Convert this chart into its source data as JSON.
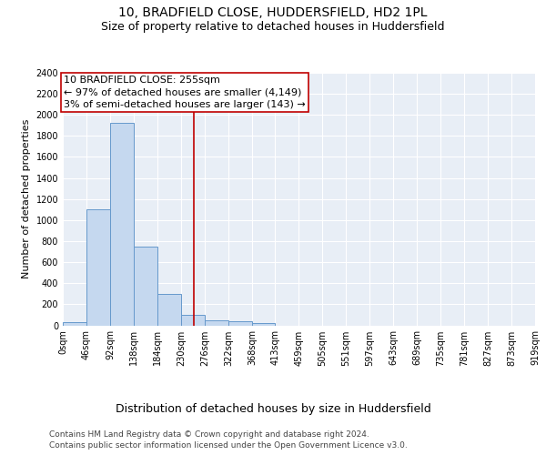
{
  "title1": "10, BRADFIELD CLOSE, HUDDERSFIELD, HD2 1PL",
  "title2": "Size of property relative to detached houses in Huddersfield",
  "xlabel": "Distribution of detached houses by size in Huddersfield",
  "ylabel": "Number of detached properties",
  "bar_edges": [
    0,
    46,
    92,
    138,
    184,
    230,
    276,
    322,
    368,
    413,
    459,
    505,
    551,
    597,
    643,
    689,
    735,
    781,
    827,
    873,
    919
  ],
  "bar_heights": [
    30,
    1100,
    1920,
    750,
    300,
    100,
    50,
    40,
    20,
    0,
    0,
    0,
    0,
    0,
    0,
    0,
    0,
    0,
    0,
    0
  ],
  "bar_color": "#c5d8ef",
  "bar_edgecolor": "#6699cc",
  "property_line_x": 255,
  "property_line_color": "#c00000",
  "annotation_line1": "10 BRADFIELD CLOSE: 255sqm",
  "annotation_line2": "← 97% of detached houses are smaller (4,149)",
  "annotation_line3": "3% of semi-detached houses are larger (143) →",
  "annotation_box_color": "#c00000",
  "ylim": [
    0,
    2400
  ],
  "yticks": [
    0,
    200,
    400,
    600,
    800,
    1000,
    1200,
    1400,
    1600,
    1800,
    2000,
    2200,
    2400
  ],
  "background_color": "#e8eef6",
  "tick_labels": [
    "0sqm",
    "46sqm",
    "92sqm",
    "138sqm",
    "184sqm",
    "230sqm",
    "276sqm",
    "322sqm",
    "368sqm",
    "413sqm",
    "459sqm",
    "505sqm",
    "551sqm",
    "597sqm",
    "643sqm",
    "689sqm",
    "735sqm",
    "781sqm",
    "827sqm",
    "873sqm",
    "919sqm"
  ],
  "footer1": "Contains HM Land Registry data © Crown copyright and database right 2024.",
  "footer2": "Contains public sector information licensed under the Open Government Licence v3.0.",
  "title1_fontsize": 10,
  "title2_fontsize": 9,
  "xlabel_fontsize": 9,
  "ylabel_fontsize": 8,
  "tick_fontsize": 7,
  "annotation_fontsize": 8,
  "footer_fontsize": 6.5
}
